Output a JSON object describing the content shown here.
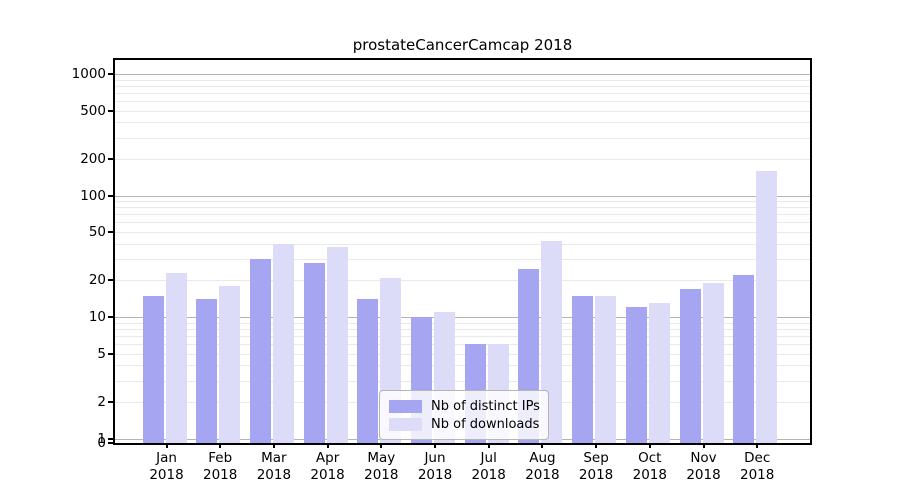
{
  "chart_data": {
    "type": "bar",
    "title": "prostateCancerCamcap 2018",
    "x_axis": {
      "months": [
        "Jan",
        "Feb",
        "Mar",
        "Apr",
        "May",
        "Jun",
        "Jul",
        "Aug",
        "Sep",
        "Oct",
        "Nov",
        "Dec"
      ],
      "year": "2018"
    },
    "y_axis": {
      "scale": "log",
      "ticks": [
        0,
        1,
        2,
        5,
        10,
        20,
        50,
        100,
        200,
        500,
        1000
      ],
      "ylim": [
        0,
        1000
      ],
      "grid": "on"
    },
    "series": [
      {
        "name": "Nb of distinct IPs",
        "color": "#a5a5f1",
        "values": [
          15,
          14,
          30,
          28,
          14,
          10,
          6,
          25,
          15,
          12,
          17,
          22
        ]
      },
      {
        "name": "Nb of downloads",
        "color": "#dcdcf9",
        "values": [
          23,
          18,
          40,
          38,
          21,
          11,
          6,
          42,
          15,
          13,
          19,
          160
        ]
      }
    ],
    "legend_position": "lower-center"
  },
  "colors": {
    "grid_major": "#b3b3b3",
    "grid_minor": "#e9e9e9",
    "axis": "#000000",
    "background": "#ffffff"
  }
}
